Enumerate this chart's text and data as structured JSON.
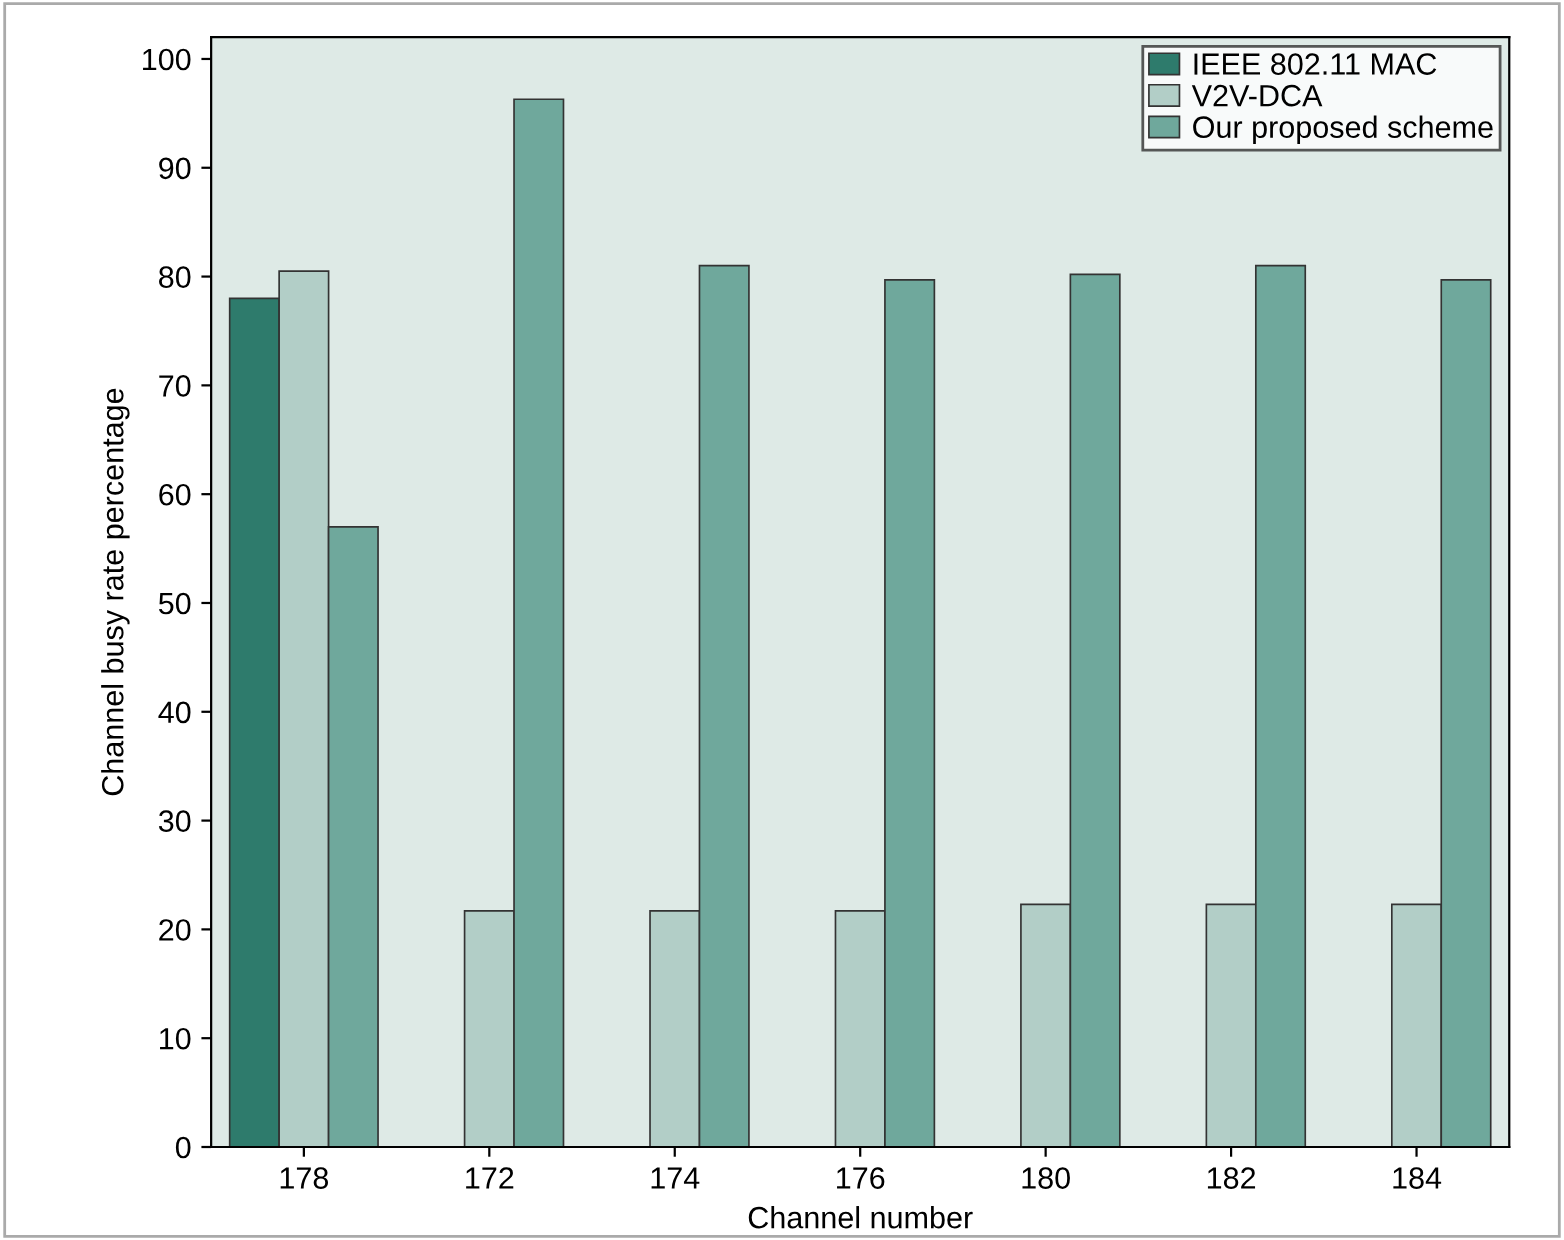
{
  "chart_data": {
    "type": "bar",
    "xlabel": "Channel number",
    "ylabel": "Channel busy rate percentage",
    "categories": [
      "178",
      "172",
      "174",
      "176",
      "180",
      "182",
      "184"
    ],
    "series": [
      {
        "name": "IEEE 802.11 MAC",
        "color": "#2e7b6c",
        "values": [
          78,
          null,
          null,
          null,
          null,
          null,
          null
        ]
      },
      {
        "name": "V2V-DCA",
        "color": "#b2cec7",
        "values": [
          80.5,
          21.7,
          21.7,
          21.7,
          22.3,
          22.3,
          22.3
        ]
      },
      {
        "name": "Our proposed scheme",
        "color": "#6fa89c",
        "values": [
          57,
          96.3,
          81,
          79.7,
          80.2,
          81,
          79.7
        ]
      }
    ],
    "ylim": [
      0,
      102
    ],
    "yticks": [
      0,
      10,
      20,
      30,
      40,
      50,
      60,
      70,
      80,
      90,
      100
    ],
    "grid": false,
    "legend": "top right"
  }
}
